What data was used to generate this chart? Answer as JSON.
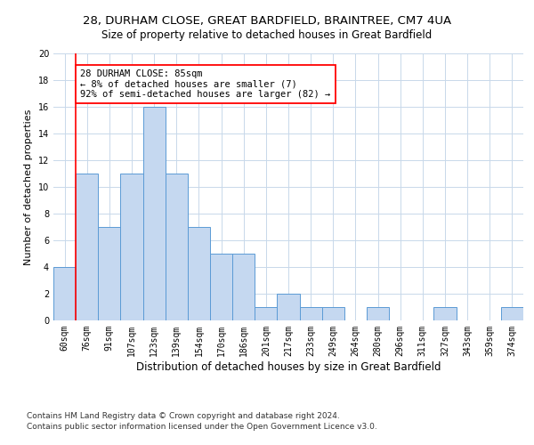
{
  "title1": "28, DURHAM CLOSE, GREAT BARDFIELD, BRAINTREE, CM7 4UA",
  "title2": "Size of property relative to detached houses in Great Bardfield",
  "xlabel": "Distribution of detached houses by size in Great Bardfield",
  "ylabel": "Number of detached properties",
  "categories": [
    "60sqm",
    "76sqm",
    "91sqm",
    "107sqm",
    "123sqm",
    "139sqm",
    "154sqm",
    "170sqm",
    "186sqm",
    "201sqm",
    "217sqm",
    "233sqm",
    "249sqm",
    "264sqm",
    "280sqm",
    "296sqm",
    "311sqm",
    "327sqm",
    "343sqm",
    "359sqm",
    "374sqm"
  ],
  "values": [
    4,
    11,
    7,
    11,
    16,
    11,
    7,
    5,
    5,
    1,
    2,
    1,
    1,
    0,
    1,
    0,
    0,
    1,
    0,
    0,
    1
  ],
  "bar_color": "#c5d8f0",
  "bar_edge_color": "#5b9bd5",
  "property_line_bin": 1,
  "annotation_text": "28 DURHAM CLOSE: 85sqm\n← 8% of detached houses are smaller (7)\n92% of semi-detached houses are larger (82) →",
  "annotation_box_color": "white",
  "annotation_box_edge_color": "red",
  "vline_color": "red",
  "ylim": [
    0,
    20
  ],
  "yticks": [
    0,
    2,
    4,
    6,
    8,
    10,
    12,
    14,
    16,
    18,
    20
  ],
  "grid_color": "#c8d8ea",
  "background_color": "white",
  "footnote1": "Contains HM Land Registry data © Crown copyright and database right 2024.",
  "footnote2": "Contains public sector information licensed under the Open Government Licence v3.0.",
  "title1_fontsize": 9.5,
  "title2_fontsize": 8.5,
  "xlabel_fontsize": 8.5,
  "ylabel_fontsize": 8,
  "tick_fontsize": 7,
  "annotation_fontsize": 7.5,
  "footnote_fontsize": 6.5
}
